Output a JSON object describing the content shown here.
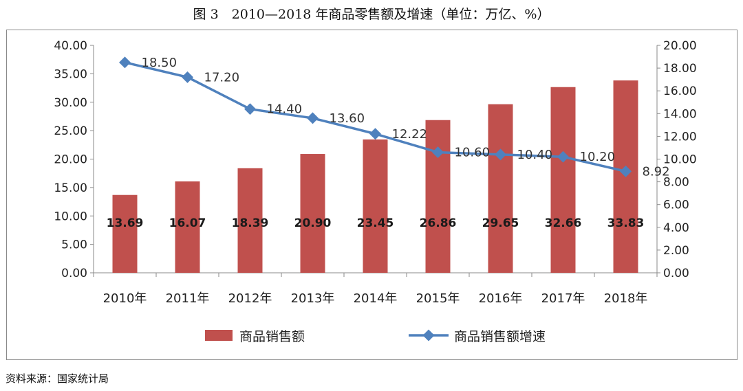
{
  "title": "图 3　2010—2018 年商品零售额及增速（单位：万亿、%）",
  "source": "资料来源：国家统计局",
  "colors": {
    "bar": "#c0504d",
    "line": "#4f81bd",
    "axis": "#8a8a8a",
    "text": "#222222"
  },
  "chart_data": {
    "type": "bar+line",
    "categories": [
      "2010年",
      "2011年",
      "2012年",
      "2013年",
      "2014年",
      "2015年",
      "2016年",
      "2017年",
      "2018年"
    ],
    "series": [
      {
        "name": "商品销售额",
        "type": "bar",
        "axis": "left",
        "values": [
          13.69,
          16.07,
          18.39,
          20.9,
          23.45,
          26.86,
          29.65,
          32.66,
          33.83
        ],
        "labels": [
          "13.69",
          "16.07",
          "18.39",
          "20.90",
          "23.45",
          "26.86",
          "29.65",
          "32.66",
          "33.83"
        ]
      },
      {
        "name": "商品销售额增速",
        "type": "line",
        "axis": "right",
        "values": [
          18.5,
          17.2,
          14.4,
          13.6,
          12.22,
          10.6,
          10.4,
          10.2,
          8.92
        ],
        "labels": [
          "18.50",
          "17.20",
          "14.40",
          "13.60",
          "12.22",
          "10.60",
          "10.40",
          "10.20",
          "8.92"
        ]
      }
    ],
    "ylim_left": [
      0,
      40
    ],
    "ylim_right": [
      0,
      20
    ],
    "yticks_left": [
      "0.00",
      "5.00",
      "10.00",
      "15.00",
      "20.00",
      "25.00",
      "30.00",
      "35.00",
      "40.00"
    ],
    "yticks_right": [
      "0.00",
      "2.00",
      "4.00",
      "6.00",
      "8.00",
      "10.00",
      "12.00",
      "14.00",
      "16.00",
      "18.00",
      "20.00"
    ],
    "grid": false,
    "legend_position": "bottom"
  }
}
